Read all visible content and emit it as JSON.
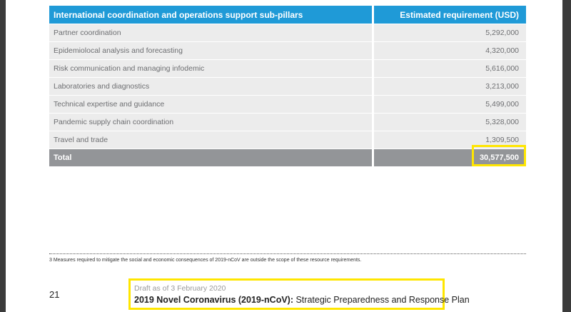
{
  "table": {
    "header": [
      "International coordination and operations support sub-pillars",
      "Estimated requirement (USD)"
    ],
    "rows": [
      [
        "Partner coordination",
        "5,292,000"
      ],
      [
        "Epidemiolocal analysis and forecasting",
        "4,320,000"
      ],
      [
        "Risk communication and managing infodemic",
        "5,616,000"
      ],
      [
        "Laboratories and diagnostics",
        "3,213,000"
      ],
      [
        "Technical expertise and guidance",
        "5,499,000"
      ],
      [
        "Pandemic supply chain coordination",
        "5,328,000"
      ],
      [
        "Travel and trade",
        "1,309,500"
      ]
    ],
    "total": [
      "Total",
      "30,577,500"
    ]
  },
  "footnote": "3  Measures required to mitigate the social and economic consequences of 2019-nCoV are outside the scope of these resource requirements.",
  "footer": {
    "page_number": "21",
    "draft": "Draft as of 3 February 2020",
    "title_bold": "2019 Novel Coronavirus (2019-nCoV):",
    "title_rest": " Strategic Preparedness and Response Plan"
  }
}
